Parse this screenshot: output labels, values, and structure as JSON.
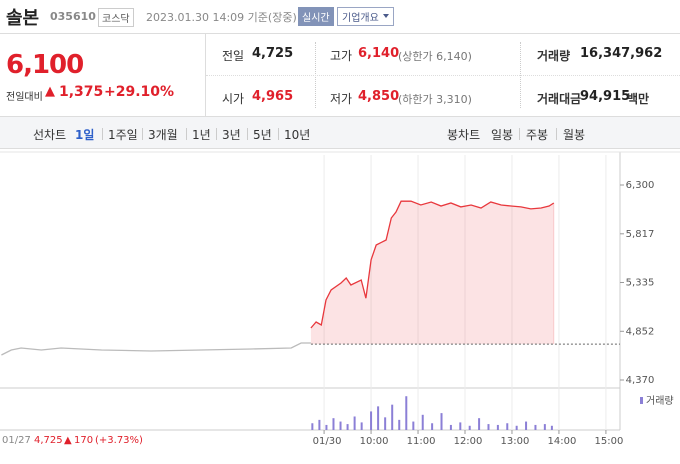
{
  "header": {
    "name": "솔본",
    "code": "035610",
    "market": "코스닥",
    "timestamp": "2023.01.30 14:09 기준(장중)",
    "realtime_button": "실시간",
    "company_button": "기업개요"
  },
  "quote": {
    "price": "6,100",
    "change_label": "전일대비",
    "change": "1,375",
    "rate": "+29.10%"
  },
  "stats": [
    {
      "label": "전일",
      "value": "4,725",
      "color": "#222222"
    },
    {
      "label": "고가",
      "value": "6,140",
      "note": "(상한가 6,140)",
      "color": "#e0202b"
    },
    {
      "label": "거래량",
      "value": "16,347,962",
      "color": "#222222"
    },
    {
      "label": "시가",
      "value": "4,965",
      "color": "#e0202b"
    },
    {
      "label": "저가",
      "value": "4,850",
      "note": "(하한가 3,310)",
      "color": "#e0202b"
    },
    {
      "label": "거래대금",
      "value": "94,915",
      "unit": "백만",
      "color": "#222222"
    }
  ],
  "tabs": {
    "line_label": "선차트",
    "line_periods": [
      "1일",
      "1주일",
      "3개월",
      "1년",
      "3년",
      "5년",
      "10년"
    ],
    "candle_label": "봉차트",
    "candle_periods": [
      "일봉",
      "주봉",
      "월봉"
    ]
  },
  "chart_data": {
    "type": "line",
    "xlim": [
      2.1,
      15.3
    ],
    "xticks": [
      {
        "value": 9,
        "label": "01/30"
      },
      {
        "value": 10,
        "label": "10:00"
      },
      {
        "value": 11,
        "label": "11:00"
      },
      {
        "value": 12,
        "label": "12:00"
      },
      {
        "value": 13,
        "label": "13:00"
      },
      {
        "value": 14,
        "label": "14:00"
      },
      {
        "value": 15,
        "label": "15:00"
      }
    ],
    "ylim": [
      4370,
      6300
    ],
    "yticks": [
      {
        "value": 6300,
        "label": "6,300"
      },
      {
        "value": 5817,
        "label": "5,817"
      },
      {
        "value": 5335,
        "label": "5,335"
      },
      {
        "value": 4852,
        "label": "4,852"
      },
      {
        "value": 4370,
        "label": "4,370"
      }
    ],
    "baseline": 4725,
    "series": [
      {
        "color": "#bbbbbb",
        "fill": false,
        "x": [
          2.13,
          2.34,
          2.55,
          2.98,
          3.4,
          3.83,
          4.26,
          5.32,
          6.38,
          7.45,
          8.3,
          8.51,
          8.72
        ],
        "values": [
          4617,
          4667,
          4687,
          4667,
          4687,
          4677,
          4667,
          4657,
          4667,
          4677,
          4687,
          4736,
          4736
        ]
      },
      {
        "color": "#e8383d",
        "fill": true,
        "x": [
          8.72,
          8.83,
          8.94,
          9.04,
          9.15,
          9.36,
          9.47,
          9.57,
          9.79,
          9.89,
          10.0,
          10.11,
          10.32,
          10.43,
          10.53,
          10.64,
          10.74,
          10.85,
          11.06,
          11.28,
          11.49,
          11.7,
          11.91,
          12.13,
          12.34,
          12.55,
          12.77,
          12.98,
          13.19,
          13.4,
          13.62,
          13.79,
          13.89
        ],
        "values": [
          4885,
          4944,
          4914,
          5162,
          5261,
          5330,
          5380,
          5310,
          5360,
          5180,
          5560,
          5706,
          5756,
          5973,
          6033,
          6140,
          6140,
          6140,
          6102,
          6132,
          6092,
          6122,
          6083,
          6102,
          6072,
          6132,
          6102,
          6092,
          6083,
          6063,
          6072,
          6092,
          6122
        ]
      }
    ],
    "volume": {
      "label": "거래량",
      "color": "#8b7fd6",
      "ylim": [
        0,
        45
      ],
      "x": [
        8.75,
        8.9,
        9.05,
        9.2,
        9.35,
        9.5,
        9.65,
        9.8,
        10.0,
        10.15,
        10.3,
        10.45,
        10.6,
        10.75,
        10.9,
        11.1,
        11.3,
        11.5,
        11.7,
        11.9,
        12.1,
        12.3,
        12.5,
        12.7,
        12.9,
        13.1,
        13.3,
        13.5,
        13.7,
        13.85
      ],
      "values": [
        8,
        12,
        6,
        14,
        10,
        7,
        16,
        9,
        22,
        28,
        15,
        30,
        12,
        40,
        10,
        18,
        8,
        20,
        6,
        9,
        5,
        14,
        7,
        6,
        8,
        5,
        10,
        6,
        7,
        5
      ]
    }
  },
  "footer": {
    "date": "01/27",
    "price": "4,725",
    "change": "170",
    "rate": "(+3.73%)"
  }
}
